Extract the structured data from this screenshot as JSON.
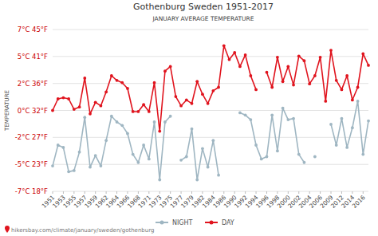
{
  "chart_data": {
    "type": "line",
    "title": "Gothenburg Sweden 1951-2017",
    "subtitle": "JANUARY AVERAGE TEMPERATURE",
    "y_label": "TEMPERATURE",
    "source": "hikersbay.com/climate/january/sweden/gothenburg",
    "categories": [
      "1951",
      null,
      "1953",
      null,
      "1955",
      null,
      "1957",
      null,
      "1959",
      null,
      "1962",
      null,
      "1964",
      null,
      "1966",
      null,
      "1968",
      null,
      "1971",
      null,
      "1973",
      null,
      "1975",
      null,
      "1977",
      null,
      "1979",
      null,
      "1982",
      null,
      "1984",
      null,
      "1986",
      null,
      "1990",
      null,
      "1992",
      null,
      "1994",
      null,
      "1996",
      null,
      "1998",
      null,
      "2000",
      null,
      "2002",
      null,
      "2004",
      null,
      "2006",
      null,
      "2009",
      null,
      "2012",
      null,
      "2014",
      null,
      "2016",
      null
    ],
    "series": [
      {
        "name": "NIGHT",
        "color": "#9fb6c2",
        "marker": "circle",
        "values": [
          -4.8,
          -3.0,
          -3.2,
          -5.3,
          -5.2,
          -3.6,
          -0.6,
          -4.9,
          -3.9,
          -4.8,
          -2.6,
          -0.5,
          -1.0,
          -1.3,
          -2.0,
          -3.8,
          -4.5,
          -3.0,
          -4.2,
          -1.0,
          -6.0,
          -1.0,
          -0.5,
          null,
          -4.3,
          -4.0,
          -1.6,
          -6.0,
          -3.3,
          -4.9,
          -2.6,
          -5.6,
          null,
          null,
          null,
          -0.2,
          -0.4,
          -0.8,
          -3.0,
          -4.2,
          -4.0,
          -0.4,
          -3.5,
          0.2,
          -0.8,
          -0.7,
          -3.8,
          -4.5,
          null,
          -4.0,
          null,
          null,
          -1.2,
          -3.0,
          -0.7,
          -3.2,
          -1.5,
          0.8,
          -3.8,
          -0.9
        ]
      },
      {
        "name": "DAY",
        "color": "#e0141e",
        "marker": "circle",
        "values": [
          0.0,
          1.0,
          1.1,
          1.0,
          0.1,
          0.3,
          2.8,
          -0.3,
          0.7,
          0.4,
          1.6,
          3.0,
          2.6,
          2.4,
          1.9,
          -0.1,
          -0.1,
          0.5,
          -0.1,
          2.4,
          -1.8,
          3.4,
          3.8,
          1.2,
          0.4,
          0.9,
          0.6,
          2.5,
          1.4,
          0.6,
          1.7,
          2.0,
          5.6,
          4.4,
          5.0,
          3.8,
          4.8,
          3.0,
          1.8,
          null,
          3.3,
          2.0,
          4.6,
          2.5,
          3.8,
          2.2,
          4.7,
          4.3,
          2.3,
          3.0,
          4.6,
          0.8,
          5.2,
          2.6,
          1.8,
          3.0,
          0.9,
          2.0,
          4.9,
          3.9
        ]
      }
    ],
    "ylim": [
      -7,
      7
    ],
    "yticks": [
      {
        "value": -7,
        "label": "-7°C 18°F"
      },
      {
        "value": -4.67,
        "label": "-5°C 23°F"
      },
      {
        "value": -2.33,
        "label": "-2°C 27°F"
      },
      {
        "value": 0,
        "label": "0°C 32°F"
      },
      {
        "value": 2.33,
        "label": "2°C 36°F"
      },
      {
        "value": 4.67,
        "label": "5°C 41°F"
      },
      {
        "value": 7,
        "label": "7°C 45°F"
      }
    ],
    "grid": true,
    "legend": "bottom"
  }
}
